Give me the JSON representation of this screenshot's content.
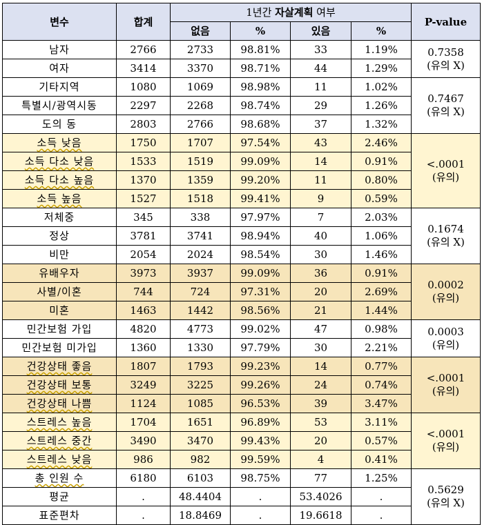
{
  "header": {
    "var": "변수",
    "total": "합계",
    "group_prefix": "1년간 ",
    "group_bold": "자살계획",
    "group_suffix": " 여부",
    "no": "없음",
    "pct1": "%",
    "yes": "있음",
    "pct2": "%",
    "pvalue": "P-value"
  },
  "rows": [
    {
      "label": "남자",
      "total": "2766",
      "no": "2733",
      "no_pct": "98.81%",
      "yes": "33",
      "yes_pct": "1.19%"
    },
    {
      "label": "여자",
      "total": "3414",
      "no": "3370",
      "no_pct": "98.71%",
      "yes": "44",
      "yes_pct": "1.29%"
    },
    {
      "label": "기타지역",
      "total": "1080",
      "no": "1069",
      "no_pct": "98.98%",
      "yes": "11",
      "yes_pct": "1.02%"
    },
    {
      "label": "특별시/광역시동",
      "total": "2297",
      "no": "2268",
      "no_pct": "98.74%",
      "yes": "29",
      "yes_pct": "1.26%"
    },
    {
      "label": "도의 동",
      "total": "2803",
      "no": "2766",
      "no_pct": "98.68%",
      "yes": "37",
      "yes_pct": "1.32%"
    },
    {
      "label": "소득 낮음",
      "total": "1750",
      "no": "1707",
      "no_pct": "97.54%",
      "yes": "43",
      "yes_pct": "2.46%"
    },
    {
      "label": "소득 다소 낮음",
      "total": "1533",
      "no": "1519",
      "no_pct": "99.09%",
      "yes": "14",
      "yes_pct": "0.91%"
    },
    {
      "label": "소득 다소 높음",
      "total": "1370",
      "no": "1359",
      "no_pct": "99.20%",
      "yes": "11",
      "yes_pct": "0.80%"
    },
    {
      "label": "소득 높음",
      "total": "1527",
      "no": "1518",
      "no_pct": "99.41%",
      "yes": "9",
      "yes_pct": "0.59%"
    },
    {
      "label": "저체중",
      "total": "345",
      "no": "338",
      "no_pct": "97.97%",
      "yes": "7",
      "yes_pct": "2.03%"
    },
    {
      "label": "정상",
      "total": "3781",
      "no": "3741",
      "no_pct": "98.94%",
      "yes": "40",
      "yes_pct": "1.06%"
    },
    {
      "label": "비만",
      "total": "2054",
      "no": "2024",
      "no_pct": "98.54%",
      "yes": "30",
      "yes_pct": "1.46%"
    },
    {
      "label": "유배우자",
      "total": "3973",
      "no": "3937",
      "no_pct": "99.09%",
      "yes": "36",
      "yes_pct": "0.91%"
    },
    {
      "label": "사별/이혼",
      "total": "744",
      "no": "724",
      "no_pct": "97.31%",
      "yes": "20",
      "yes_pct": "2.69%"
    },
    {
      "label": "미혼",
      "total": "1463",
      "no": "1442",
      "no_pct": "98.56%",
      "yes": "21",
      "yes_pct": "1.44%"
    },
    {
      "label": "민간보험 가입",
      "total": "4820",
      "no": "4773",
      "no_pct": "99.02%",
      "yes": "47",
      "yes_pct": "0.98%"
    },
    {
      "label": "민간보험 미가입",
      "total": "1360",
      "no": "1330",
      "no_pct": "97.79%",
      "yes": "30",
      "yes_pct": "2.21%"
    },
    {
      "label": "건강상태 좋음",
      "total": "1807",
      "no": "1793",
      "no_pct": "99.23%",
      "yes": "14",
      "yes_pct": "0.77%"
    },
    {
      "label": "건강상태 보통",
      "total": "3249",
      "no": "3225",
      "no_pct": "99.26%",
      "yes": "24",
      "yes_pct": "0.74%"
    },
    {
      "label": "건강상태 나쁨",
      "total": "1124",
      "no": "1085",
      "no_pct": "96.53%",
      "yes": "39",
      "yes_pct": "3.47%"
    },
    {
      "label": "스트레스 높음",
      "total": "1704",
      "no": "1651",
      "no_pct": "96.89%",
      "yes": "53",
      "yes_pct": "3.11%"
    },
    {
      "label": "스트레스 중간",
      "total": "3490",
      "no": "3470",
      "no_pct": "99.43%",
      "yes": "20",
      "yes_pct": "0.57%"
    },
    {
      "label": "스트레스 낮음",
      "total": "986",
      "no": "982",
      "no_pct": "99.59%",
      "yes": "4",
      "yes_pct": "0.41%"
    },
    {
      "label": "총 인원 수",
      "total": "6180",
      "no": "6103",
      "no_pct": "98.75%",
      "yes": "77",
      "yes_pct": "1.25%"
    },
    {
      "label": "평균",
      "total": ".",
      "no": "48.4404",
      "no_pct": ".",
      "yes": "53.4026",
      "yes_pct": "."
    },
    {
      "label": "표준편차",
      "total": ".",
      "no": "18.8469",
      "no_pct": ".",
      "yes": "19.6618",
      "yes_pct": "."
    }
  ],
  "pvalues": [
    {
      "value": "0.7358",
      "note": "(유의 X)"
    },
    {
      "value": "0.7467",
      "note": "(유의 X)"
    },
    {
      "value": "<.0001",
      "note": "(유의)"
    },
    {
      "value": "0.1674",
      "note": "(유의 X)"
    },
    {
      "value": "0.0002",
      "note": "(유의)"
    },
    {
      "value": "0.0003",
      "note": "(유의)"
    },
    {
      "value": "<.0001",
      "note": "(유의)"
    },
    {
      "value": "<.0001",
      "note": "(유의)"
    },
    {
      "value": "0.5629",
      "note": "(유의 X)"
    }
  ],
  "colors": {
    "header_bg": "#dce1f1",
    "light_yellow": "#fff5d1",
    "tan": "#f7e5ba"
  }
}
